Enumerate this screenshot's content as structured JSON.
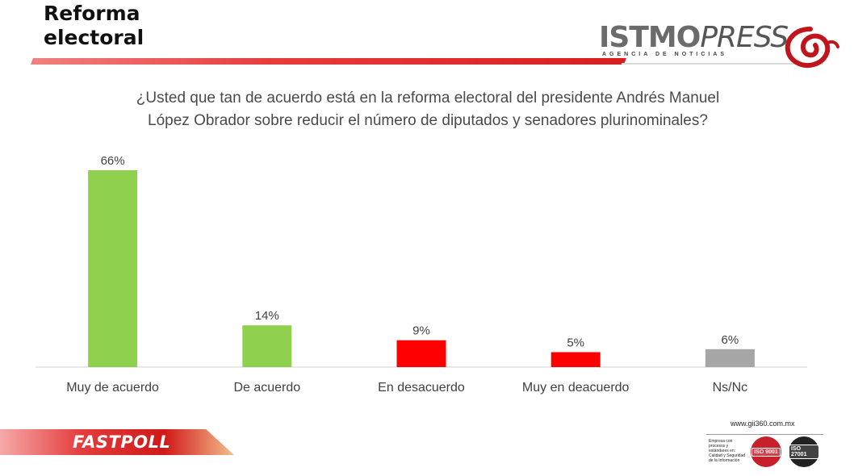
{
  "header": {
    "title_line1": "Reforma",
    "title_line2": "electoral"
  },
  "logo": {
    "name_part1": "ISTMO",
    "name_part2": "PRESS",
    "tagline": "AGENCIA DE NOTICIAS",
    "color": "#c0151b"
  },
  "question": {
    "line1": "¿Usted que tan de acuerdo está en la reforma electoral del presidente Andrés Manuel",
    "line2": "López Obrador sobre reducir el número de diputados y senadores plurinominales?"
  },
  "chart_data": {
    "type": "bar",
    "categories": [
      "Muy de acuerdo",
      "De acuerdo",
      "En desacuerdo",
      "Muy en deacuerdo",
      "Ns/Nc"
    ],
    "values": [
      66,
      14,
      9,
      5,
      6
    ],
    "value_labels": [
      "66%",
      "14%",
      "9%",
      "5%",
      "6%"
    ],
    "colors": [
      "#8fd14f",
      "#8fd14f",
      "#ff0000",
      "#ff0000",
      "#a6a6a6"
    ],
    "ylim": [
      0,
      70
    ],
    "grid": false,
    "legend": "none"
  },
  "footer": {
    "label": "FASTPOLL",
    "url": "www.gii360.com.mx",
    "cert_text": "Empresa con procesos y estándares en: Calidad y Seguridad de la Información",
    "iso_1": "ISO 9001",
    "iso_2": "ISO 27001"
  }
}
